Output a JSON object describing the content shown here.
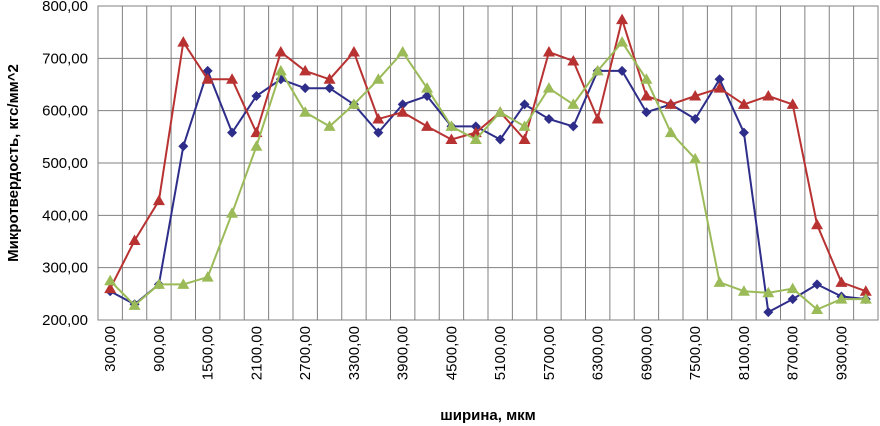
{
  "chart_data": {
    "type": "line",
    "title": "",
    "xlabel": "ширина, мкм",
    "ylabel": "Микротвердость, кгс/мм^2",
    "ylim": [
      200,
      800
    ],
    "yticks": [
      "200,00",
      "300,00",
      "400,00",
      "500,00",
      "600,00",
      "700,00",
      "800,00"
    ],
    "ytick_values": [
      200,
      300,
      400,
      500,
      600,
      700,
      800
    ],
    "x": [
      300,
      600,
      900,
      1200,
      1500,
      1800,
      2100,
      2400,
      2700,
      3000,
      3300,
      3600,
      3900,
      4200,
      4500,
      4800,
      5100,
      5400,
      5700,
      6000,
      6300,
      6600,
      6900,
      7200,
      7500,
      7800,
      8100,
      8400,
      8700,
      9000,
      9300,
      9600
    ],
    "xtick_labels": [
      "300,00",
      "900,00",
      "1500,00",
      "2100,00",
      "2700,00",
      "3300,00",
      "3900,00",
      "4500,00",
      "5100,00",
      "5700,00",
      "6300,00",
      "6900,00",
      "7500,00",
      "8100,00",
      "8700,00",
      "9300,00"
    ],
    "grid": true,
    "legend": "none",
    "series": [
      {
        "color": "#2E2E8A",
        "marker": "diamond",
        "values": [
          255,
          230,
          268,
          532,
          676,
          558,
          628,
          660,
          643,
          643,
          612,
          558,
          612,
          628,
          570,
          570,
          545,
          612,
          584,
          570,
          676,
          676,
          597,
          612,
          584,
          660,
          558,
          215,
          240,
          268,
          245,
          240
        ]
      },
      {
        "color": "#B83232",
        "marker": "triangle",
        "values": [
          260,
          352,
          428,
          731,
          660,
          660,
          558,
          712,
          676,
          660,
          712,
          584,
          597,
          570,
          545,
          558,
          597,
          545,
          712,
          695,
          584,
          774,
          628,
          612,
          628,
          643,
          612,
          628,
          612,
          382,
          272,
          255
        ]
      },
      {
        "color": "#9BBB59",
        "marker": "triangle",
        "values": [
          275,
          228,
          268,
          268,
          282,
          404,
          532,
          676,
          597,
          570,
          612,
          660,
          712,
          643,
          570,
          545,
          597,
          570,
          643,
          612,
          676,
          731,
          660,
          558,
          508,
          272,
          255,
          252,
          260,
          220,
          240,
          240
        ]
      }
    ]
  }
}
